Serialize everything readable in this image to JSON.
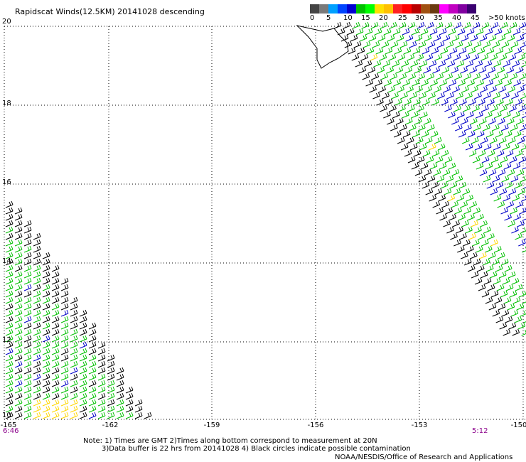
{
  "title": "Rapidscat Winds(12.5KM) 20141028 descending",
  "scale": {
    "colors": [
      "#444444",
      "#7a7a7a",
      "#00a0ff",
      "#0044ff",
      "#0000d0",
      "#00c000",
      "#00ff00",
      "#ffe000",
      "#ffc000",
      "#ff2020",
      "#ff0000",
      "#b80000",
      "#a05010",
      "#6a3a10",
      "#ff00ff",
      "#c000c0",
      "#8000a0",
      "#3a0070"
    ],
    "labels": [
      "0",
      "5",
      "10",
      "15",
      "20",
      "25",
      "30",
      "35",
      "40",
      "45",
      ">50 knots"
    ]
  },
  "lat_labels": [
    "20",
    "18",
    "16",
    "14",
    "12",
    "10"
  ],
  "lon_labels": [
    "-165",
    "-162",
    "-159",
    "-156",
    "-153",
    "-150"
  ],
  "times": {
    "left": "6:46",
    "right": "5:12"
  },
  "notes": {
    "line1": "Note: 1) Times are GMT 2)Times along bottom correspond to measurement at 20N",
    "line2": "3)Data buffer is 22 hrs from 20141028 4) Black circles indicate possible contamination"
  },
  "credit": "NOAA/NESDIS/Office of Research and Applications",
  "barb_colors": {
    "low": "#000000",
    "mid": "#00c000",
    "high": "#0000c8",
    "max": "#ffd700"
  }
}
